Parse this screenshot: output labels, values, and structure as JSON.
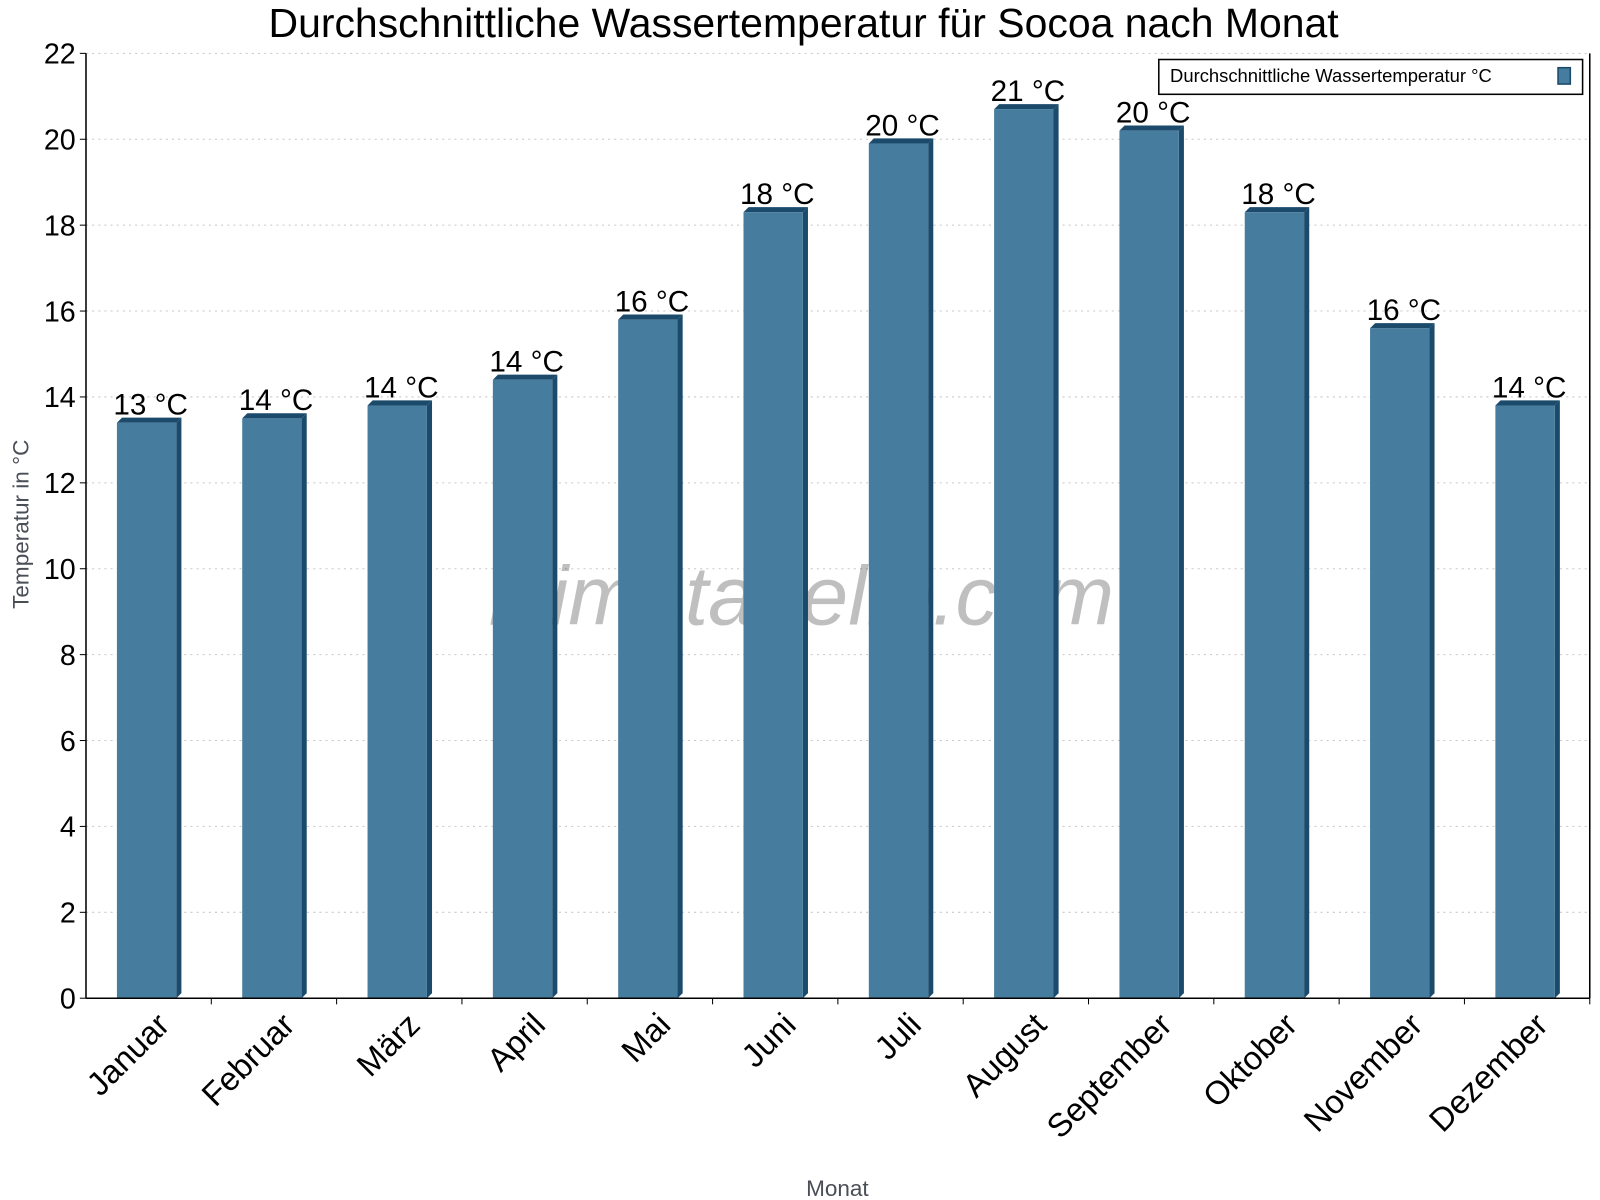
{
  "chart_data": {
    "type": "bar",
    "title": "Durchschnittliche Wassertemperatur für Socoa nach Monat",
    "xlabel": "Monat",
    "ylabel": "Temperatur in °C",
    "ylim": [
      0,
      22
    ],
    "yticks": [
      0,
      2,
      4,
      6,
      8,
      10,
      12,
      14,
      16,
      18,
      20,
      22
    ],
    "grid": true,
    "legend_placement": "top-right",
    "watermark": "klimatabelle.com",
    "categories": [
      "Januar",
      "Februar",
      "März",
      "April",
      "Mai",
      "Juni",
      "Juli",
      "August",
      "September",
      "Oktober",
      "November",
      "Dezember"
    ],
    "series": [
      {
        "name": "Durchschnittliche Wassertemperatur °C",
        "color": "#467c9e",
        "edge_color": "#1b4a6b",
        "values": [
          13.4,
          13.5,
          13.8,
          14.4,
          15.8,
          18.3,
          19.9,
          20.7,
          20.2,
          18.3,
          15.6,
          13.8
        ],
        "labels": [
          "13 °C",
          "14 °C",
          "14 °C",
          "14 °C",
          "16 °C",
          "18 °C",
          "20 °C",
          "21 °C",
          "20 °C",
          "18 °C",
          "16 °C",
          "14 °C"
        ]
      }
    ]
  }
}
